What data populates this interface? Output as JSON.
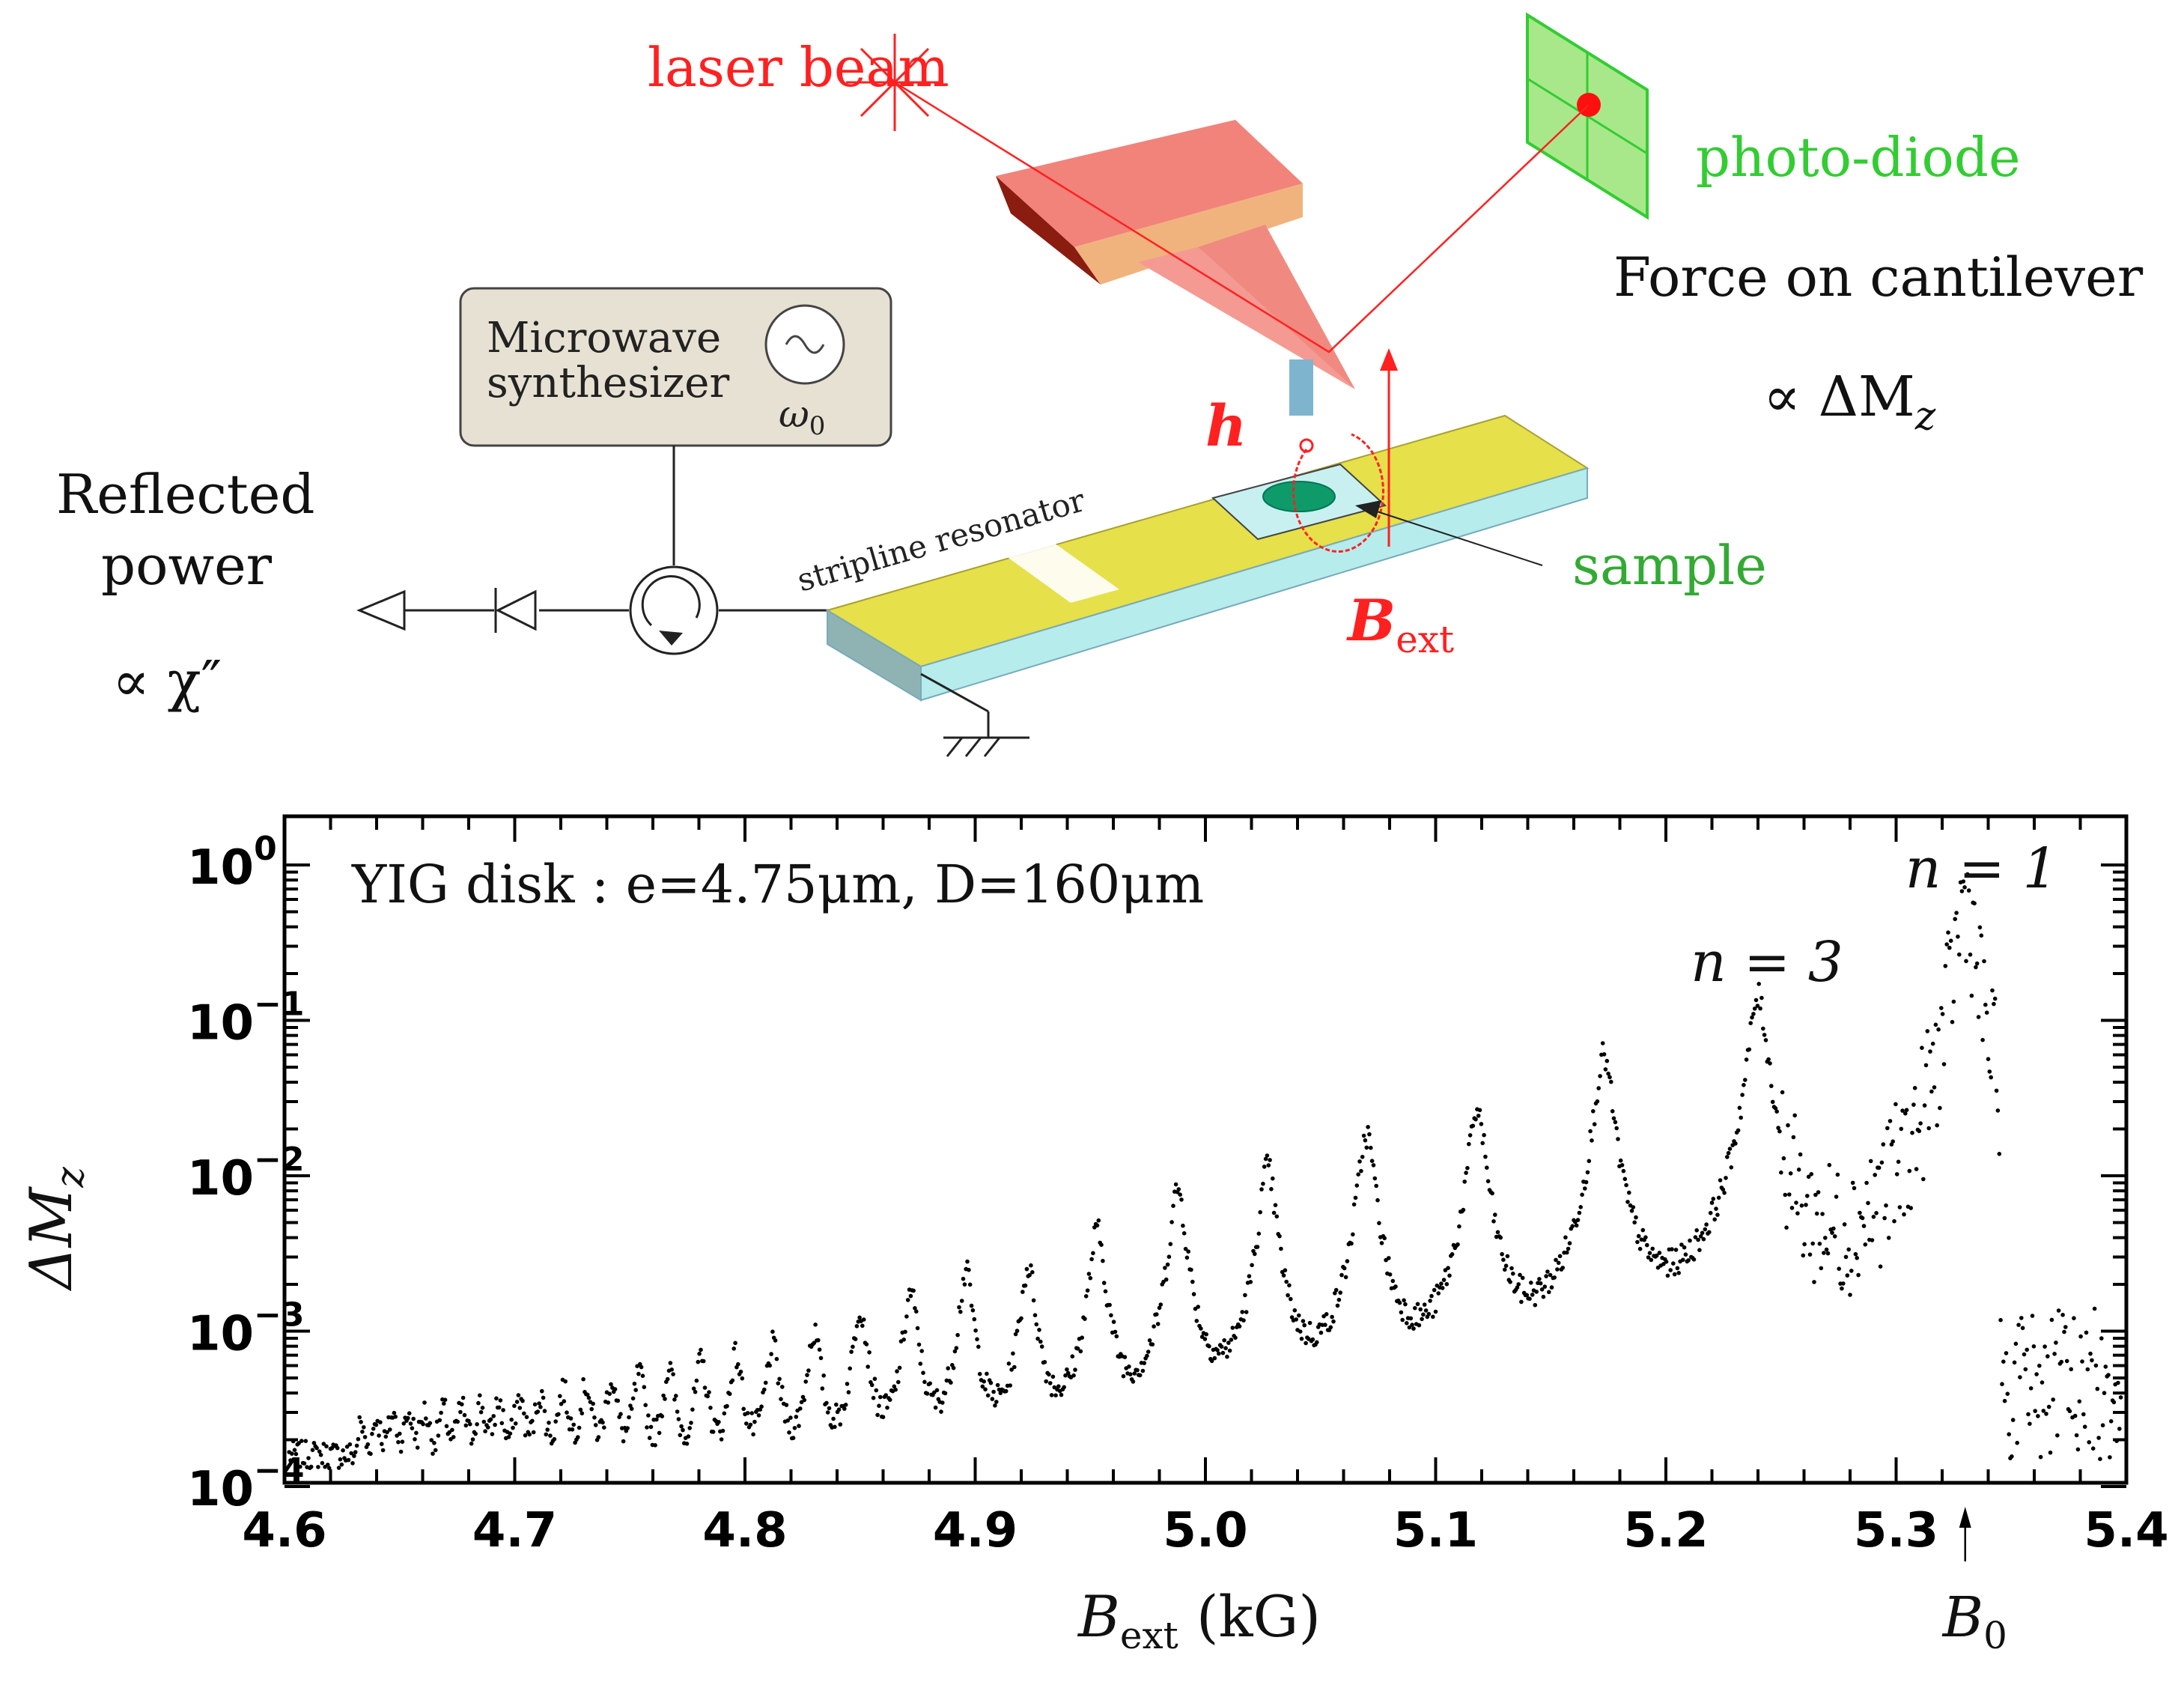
{
  "schematic": {
    "laser_label": "laser beam",
    "photodiode_label": "photo-diode",
    "force_line1": "Force on cantilever",
    "force_line2_prefix": "∝ ΔM",
    "force_line2_sub": "z",
    "synth_line1": "Microwave",
    "synth_line2": "synthesizer",
    "synth_omega": "ω",
    "synth_omega_sub": "0",
    "reflected_line1": "Reflected",
    "reflected_line2": "power",
    "reflected_line3": "∝ χ″",
    "stripline_label": "stripline resonator",
    "h_label": "h",
    "bext_main": "B",
    "bext_sub": "ext",
    "sample_label": "sample",
    "colors": {
      "laser": "#ff2020",
      "diode": "#33cc33",
      "cantilever": "#f2837a",
      "strip_top": "#e6e04a",
      "substrate": "#b6ecec",
      "sample": "#0f9a6a"
    }
  },
  "chart_data": {
    "type": "scatter",
    "x_scale": "linear",
    "y_scale": "log",
    "xlim": [
      4.6,
      5.4
    ],
    "ylim": [
      0.0001,
      1
    ],
    "x_ticks": [
      "4.6",
      "4.7",
      "4.8",
      "4.9",
      "5.0",
      "5.1",
      "5.2",
      "5.3",
      "5.4"
    ],
    "y_ticks": [
      {
        "base": "10",
        "exp": "0"
      },
      {
        "base": "10",
        "exp": "−1"
      },
      {
        "base": "10",
        "exp": "−2"
      },
      {
        "base": "10",
        "exp": "−3"
      },
      {
        "base": "10",
        "exp": "−4"
      }
    ],
    "xlabel_main": "B",
    "xlabel_sub": "ext",
    "xlabel_rest": " (kG)",
    "ylabel_main": "ΔM",
    "ylabel_sub": "z",
    "annotation_text": "YIG disk : e=4.75μm, D=160μm",
    "peak_labels": [
      {
        "text": "n = 1",
        "x": 5.33,
        "y": 0.6
      },
      {
        "text": "n = 3",
        "x": 5.24,
        "y": 0.14
      }
    ],
    "b0_main": "B",
    "b0_sub": "0",
    "b0_x": 5.33,
    "peaks": [
      {
        "x": 5.33,
        "y": 0.62
      },
      {
        "x": 5.24,
        "y": 0.14
      },
      {
        "x": 5.173,
        "y": 0.058
      },
      {
        "x": 5.118,
        "y": 0.026
      },
      {
        "x": 5.07,
        "y": 0.018
      },
      {
        "x": 5.027,
        "y": 0.011
      },
      {
        "x": 4.988,
        "y": 0.008
      },
      {
        "x": 4.953,
        "y": 0.0042
      },
      {
        "x": 4.923,
        "y": 0.0024
      },
      {
        "x": 4.896,
        "y": 0.0022
      },
      {
        "x": 4.872,
        "y": 0.0016
      },
      {
        "x": 4.85,
        "y": 0.0013
      },
      {
        "x": 4.83,
        "y": 0.00085
      },
      {
        "x": 4.812,
        "y": 0.00068
      },
      {
        "x": 4.796,
        "y": 0.00058
      },
      {
        "x": 4.781,
        "y": 0.00052
      },
      {
        "x": 4.767,
        "y": 0.00046
      },
      {
        "x": 4.754,
        "y": 0.00042
      },
      {
        "x": 4.742,
        "y": 0.00038
      },
      {
        "x": 4.731,
        "y": 0.00034
      },
      {
        "x": 4.721,
        "y": 0.00031
      },
      {
        "x": 4.711,
        "y": 0.00028
      },
      {
        "x": 4.702,
        "y": 0.00026
      },
      {
        "x": 4.693,
        "y": 0.00024
      },
      {
        "x": 4.685,
        "y": 0.00023
      },
      {
        "x": 4.677,
        "y": 0.00022
      },
      {
        "x": 4.669,
        "y": 0.00021
      },
      {
        "x": 4.661,
        "y": 0.0002
      },
      {
        "x": 4.654,
        "y": 0.00019
      },
      {
        "x": 4.647,
        "y": 0.00019
      },
      {
        "x": 4.64,
        "y": 0.00018
      },
      {
        "x": 4.633,
        "y": 0.00018
      }
    ]
  }
}
